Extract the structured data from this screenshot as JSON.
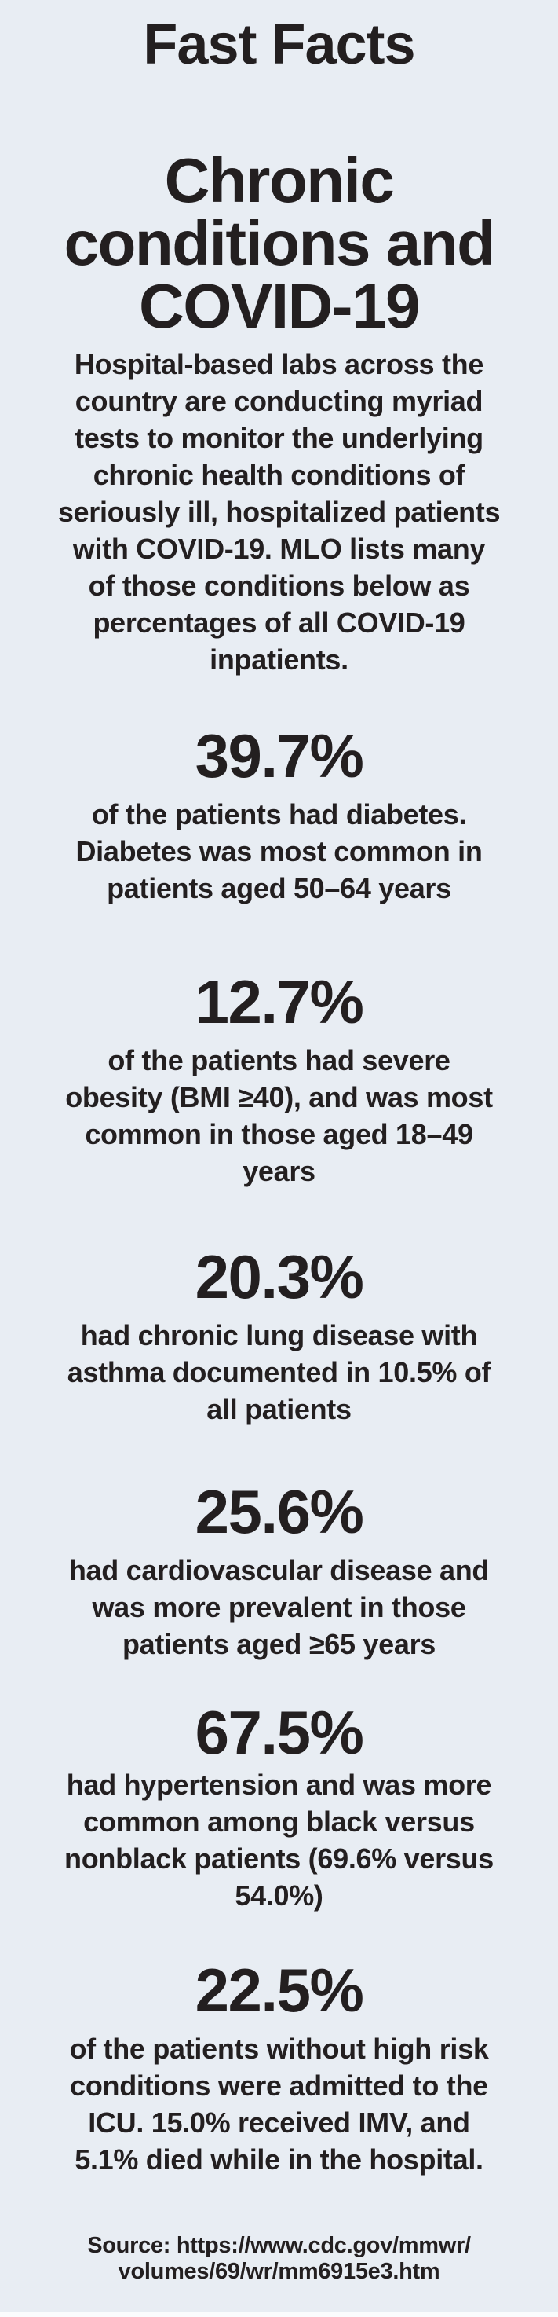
{
  "infographic": {
    "kicker": "Fast Facts",
    "heading": "Chronic\nconditions and\nCOVID-19",
    "intro": "Hospital-based labs across the\ncountry are conducting myriad\ntests to monitor the underlying\nchronic health conditions of\nseriously ill, hospitalized patients\nwith COVID-19. MLO lists many\nof those conditions below as\npercentages of all COVID-19\ninpatients.",
    "stats": [
      {
        "value": "39.7%",
        "description": "of the patients had diabetes.\nDiabetes was most common in\npatients aged 50–64 years"
      },
      {
        "value": "12.7%",
        "description": "of the patients had severe\nobesity (BMI ≥40), and was most\ncommon in those aged 18–49\nyears"
      },
      {
        "value": "20.3%",
        "description": "had chronic lung disease with\nasthma documented in 10.5% of\nall patients"
      },
      {
        "value": "25.6%",
        "description": "had cardiovascular disease and\nwas more prevalent in those\npatients aged ≥65 years"
      },
      {
        "value": "67.5%",
        "description": "had hypertension and was more\ncommon among black versus\nnonblack patients (69.6% versus\n54.0%)"
      },
      {
        "value": "22.5%",
        "description": "of the patients without high risk\nconditions were admitted to the\nICU. 15.0% received IMV, and\n5.1% died while in the hospital."
      }
    ],
    "source": "Source: https://www.cdc.gov/mmwr/\nvolumes/69/wr/mm6915e3.htm",
    "colors": {
      "background": "#e8edf3",
      "text": "#231f20"
    }
  }
}
